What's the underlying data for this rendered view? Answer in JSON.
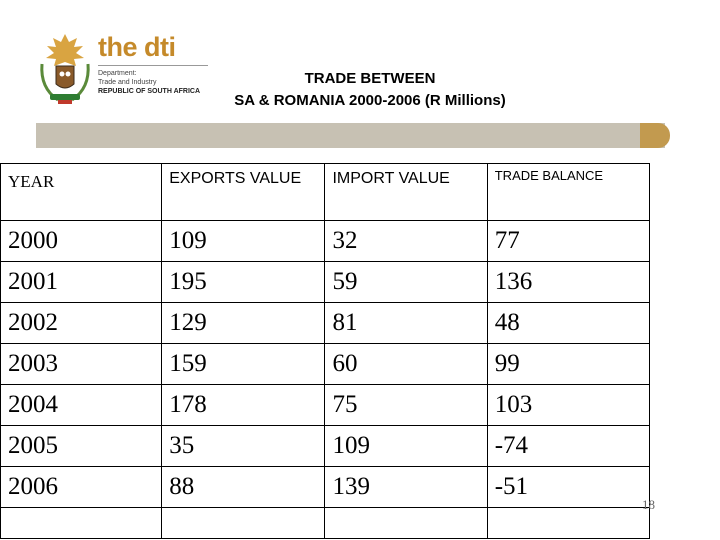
{
  "header": {
    "brand": "the dti",
    "department_lines": [
      "Department:",
      "Trade and Industry"
    ],
    "country": "REPUBLIC OF SOUTH AFRICA",
    "title_line1": "TRADE BETWEEN",
    "title_line2": "SA & ROMANIA 2000-2006 (R Millions)"
  },
  "colors": {
    "brand": "#c58a2a",
    "band": "#c7c1b3",
    "band_accent": "#c29a4f"
  },
  "table": {
    "headers": [
      "YEAR",
      "EXPORTS VALUE",
      "IMPORT VALUE",
      "TRADE BALANCE"
    ],
    "rows": [
      [
        "2000",
        "109",
        "32",
        "77"
      ],
      [
        "2001",
        "195",
        "59",
        "136"
      ],
      [
        "2002",
        "129",
        "81",
        "48"
      ],
      [
        "2003",
        "159",
        "60",
        "99"
      ],
      [
        "2004",
        "178",
        "75",
        "103"
      ],
      [
        "2005",
        "35",
        "109",
        "-74"
      ],
      [
        "2006",
        "88",
        "139",
        "-51"
      ]
    ]
  },
  "page_number": "18"
}
